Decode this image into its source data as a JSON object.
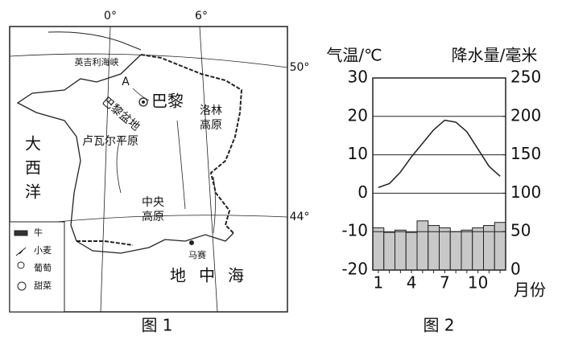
{
  "map": {
    "meridians": [
      "0°",
      "6°"
    ],
    "parallels": [
      "50°",
      "44°"
    ],
    "labels": [
      "英吉利海峡",
      "A",
      "巴黎盆地",
      "巴黎",
      "洛林",
      "高原",
      "卢瓦尔平原",
      "大西洋",
      "中央",
      "高原",
      "马赛",
      "地中海"
    ],
    "legend": [
      "牛",
      "小麦",
      "葡萄",
      "甜菜"
    ],
    "caption": "图 1"
  },
  "chart_data": {
    "type": "combo",
    "y_label": "气温/℃",
    "y2_label": "降水量/毫米",
    "x_label": "月份",
    "caption": "图 2",
    "categories": [
      1,
      null,
      null,
      4,
      null,
      null,
      7,
      null,
      null,
      10,
      null,
      null
    ],
    "series": [
      {
        "type": "line",
        "color": "#222",
        "values": [
          1.5,
          2.5,
          5.5,
          9.5,
          13,
          16.5,
          19,
          18.5,
          16,
          11.5,
          7,
          4.4
        ]
      },
      {
        "type": "bar",
        "axis": "y2",
        "color": "#c8c8c8",
        "values": [
          55,
          49,
          52,
          49,
          64,
          58,
          55,
          50,
          52,
          55,
          58,
          62
        ]
      }
    ],
    "ylim": [
      -20,
      30
    ],
    "yticks": [
      -20,
      -10,
      0,
      10,
      20,
      30
    ],
    "y2lim": [
      0,
      250
    ],
    "y2ticks": [
      0,
      50,
      100,
      150,
      200,
      250
    ],
    "grid": true
  }
}
